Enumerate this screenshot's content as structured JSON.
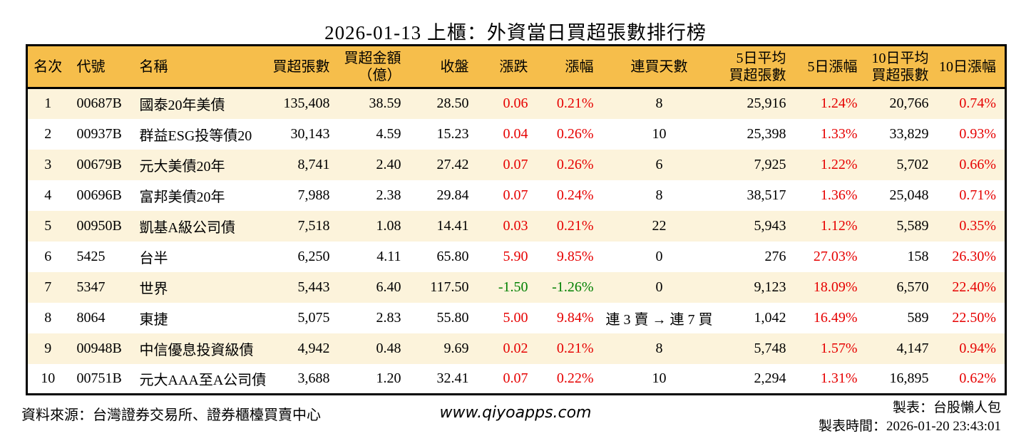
{
  "title": "2026-01-13 上櫃：外資當日買超張數排行榜",
  "colors": {
    "header_bg": "#F6BE4B",
    "row_alt_bg": "#FCF3DB",
    "positive": "#E60000",
    "negative": "#008000",
    "border": "#000000"
  },
  "chart_data": {
    "type": "table",
    "title": "2026-01-13 上櫃：外資當日買超張數排行榜",
    "columns": [
      "名次",
      "代號",
      "名稱",
      "買超張數",
      "買超金額\n（億）",
      "收盤",
      "漲跌",
      "漲幅",
      "連買天數",
      "5日平均\n買超張數",
      "5日漲幅",
      "10日平均\n買超張數",
      "10日漲幅"
    ],
    "rows": [
      {
        "rank": "1",
        "code": "00687B",
        "name": "國泰20年美債",
        "volume": "135,408",
        "amount": "38.59",
        "close": "28.50",
        "change": "0.06",
        "change_pct": "0.21%",
        "streak": "8",
        "avg5": "25,916",
        "pct5": "1.24%",
        "avg10": "20,766",
        "pct10": "0.74%"
      },
      {
        "rank": "2",
        "code": "00937B",
        "name": "群益ESG投等債20",
        "volume": "30,143",
        "amount": "4.59",
        "close": "15.23",
        "change": "0.04",
        "change_pct": "0.26%",
        "streak": "10",
        "avg5": "25,398",
        "pct5": "1.33%",
        "avg10": "33,829",
        "pct10": "0.93%"
      },
      {
        "rank": "3",
        "code": "00679B",
        "name": "元大美債20年",
        "volume": "8,741",
        "amount": "2.40",
        "close": "27.42",
        "change": "0.07",
        "change_pct": "0.26%",
        "streak": "6",
        "avg5": "7,925",
        "pct5": "1.22%",
        "avg10": "5,702",
        "pct10": "0.66%"
      },
      {
        "rank": "4",
        "code": "00696B",
        "name": "富邦美債20年",
        "volume": "7,988",
        "amount": "2.38",
        "close": "29.84",
        "change": "0.07",
        "change_pct": "0.24%",
        "streak": "8",
        "avg5": "38,517",
        "pct5": "1.36%",
        "avg10": "25,048",
        "pct10": "0.71%"
      },
      {
        "rank": "5",
        "code": "00950B",
        "name": "凱基A級公司債",
        "volume": "7,518",
        "amount": "1.08",
        "close": "14.41",
        "change": "0.03",
        "change_pct": "0.21%",
        "streak": "22",
        "avg5": "5,943",
        "pct5": "1.12%",
        "avg10": "5,589",
        "pct10": "0.35%"
      },
      {
        "rank": "6",
        "code": "5425",
        "name": "台半",
        "volume": "6,250",
        "amount": "4.11",
        "close": "65.80",
        "change": "5.90",
        "change_pct": "9.85%",
        "streak": "0",
        "avg5": "276",
        "pct5": "27.03%",
        "avg10": "158",
        "pct10": "26.30%"
      },
      {
        "rank": "7",
        "code": "5347",
        "name": "世界",
        "volume": "5,443",
        "amount": "6.40",
        "close": "117.50",
        "change": "-1.50",
        "change_pct": "-1.26%",
        "streak": "0",
        "avg5": "9,123",
        "pct5": "18.09%",
        "avg10": "6,570",
        "pct10": "22.40%"
      },
      {
        "rank": "8",
        "code": "8064",
        "name": "東捷",
        "volume": "5,075",
        "amount": "2.83",
        "close": "55.80",
        "change": "5.00",
        "change_pct": "9.84%",
        "streak": "連 3 賣 → 連 7 買",
        "avg5": "1,042",
        "pct5": "16.49%",
        "avg10": "589",
        "pct10": "22.50%"
      },
      {
        "rank": "9",
        "code": "00948B",
        "name": "中信優息投資級債",
        "volume": "4,942",
        "amount": "0.48",
        "close": "9.69",
        "change": "0.02",
        "change_pct": "0.21%",
        "streak": "8",
        "avg5": "5,748",
        "pct5": "1.57%",
        "avg10": "4,147",
        "pct10": "0.94%"
      },
      {
        "rank": "10",
        "code": "00751B",
        "name": "元大AAA至A公司債",
        "volume": "3,688",
        "amount": "1.20",
        "close": "32.41",
        "change": "0.07",
        "change_pct": "0.22%",
        "streak": "10",
        "avg5": "2,294",
        "pct5": "1.31%",
        "avg10": "16,895",
        "pct10": "0.62%"
      }
    ]
  },
  "footer": {
    "source": "資料來源：台灣證券交易所、證券櫃檯買賣中心",
    "website": "www.qiyoapps.com",
    "maker": "製表：台股懶人包",
    "timestamp": "製表時間：2026-01-20 23:43:01"
  }
}
